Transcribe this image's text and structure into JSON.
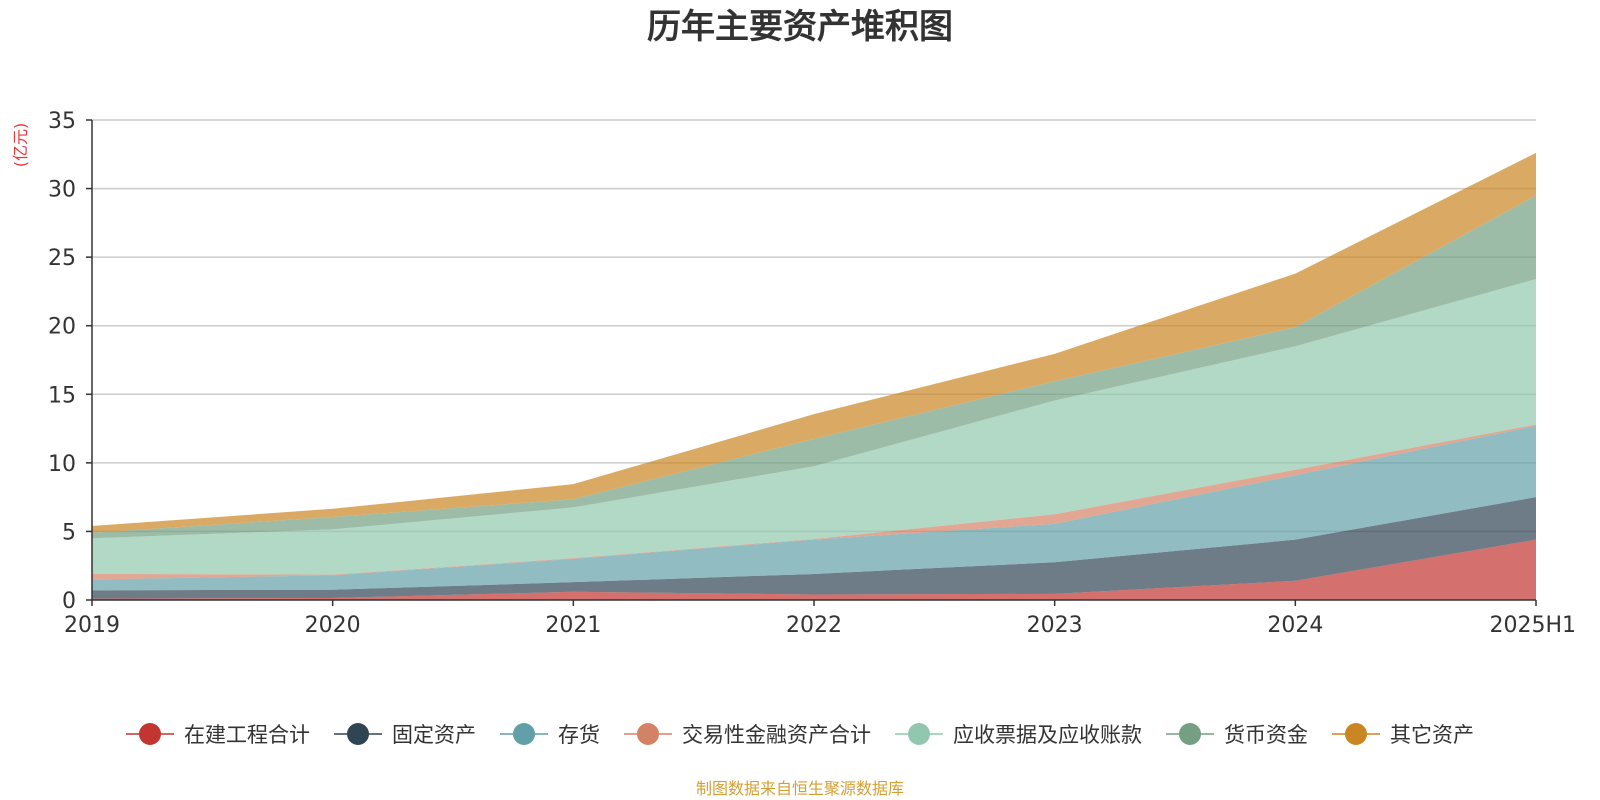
{
  "chart_data": {
    "type": "area",
    "stacked": true,
    "title": "历年主要资产堆积图",
    "unit_label": "(亿元)",
    "source_note": "制图数据来自恒生聚源数据库",
    "categories": [
      "2019",
      "2020",
      "2021",
      "2022",
      "2023",
      "2024",
      "2025H1"
    ],
    "ylim": [
      0,
      35
    ],
    "yticks": [
      0,
      5,
      10,
      15,
      20,
      25,
      30,
      35
    ],
    "grid": true,
    "legend_position": "bottom",
    "series": [
      {
        "name": "在建工程合计",
        "color": "#c23531",
        "values": [
          0.1,
          0.15,
          0.6,
          0.4,
          0.45,
          1.4,
          4.4
        ]
      },
      {
        "name": "固定资产",
        "color": "#2f4554",
        "values": [
          0.6,
          0.6,
          0.7,
          1.5,
          2.3,
          3.0,
          3.1
        ]
      },
      {
        "name": "存货",
        "color": "#61a0a8",
        "values": [
          0.8,
          1.05,
          1.7,
          2.5,
          2.8,
          4.7,
          5.2
        ]
      },
      {
        "name": "交易性金融资产合计",
        "color": "#d48265",
        "values": [
          0.4,
          0.05,
          0.05,
          0.05,
          0.7,
          0.4,
          0.1
        ]
      },
      {
        "name": "应收票据及应收账款",
        "color": "#91c7ae",
        "values": [
          2.6,
          3.3,
          3.7,
          5.3,
          8.3,
          9.0,
          10.6
        ]
      },
      {
        "name": "货币资金",
        "color": "#749f83",
        "values": [
          0.4,
          0.9,
          0.6,
          2.0,
          1.4,
          1.4,
          6.1
        ]
      },
      {
        "name": "其它资产",
        "color": "#ca8622",
        "values": [
          0.5,
          0.6,
          1.1,
          1.8,
          2.0,
          3.9,
          3.1
        ]
      }
    ]
  }
}
